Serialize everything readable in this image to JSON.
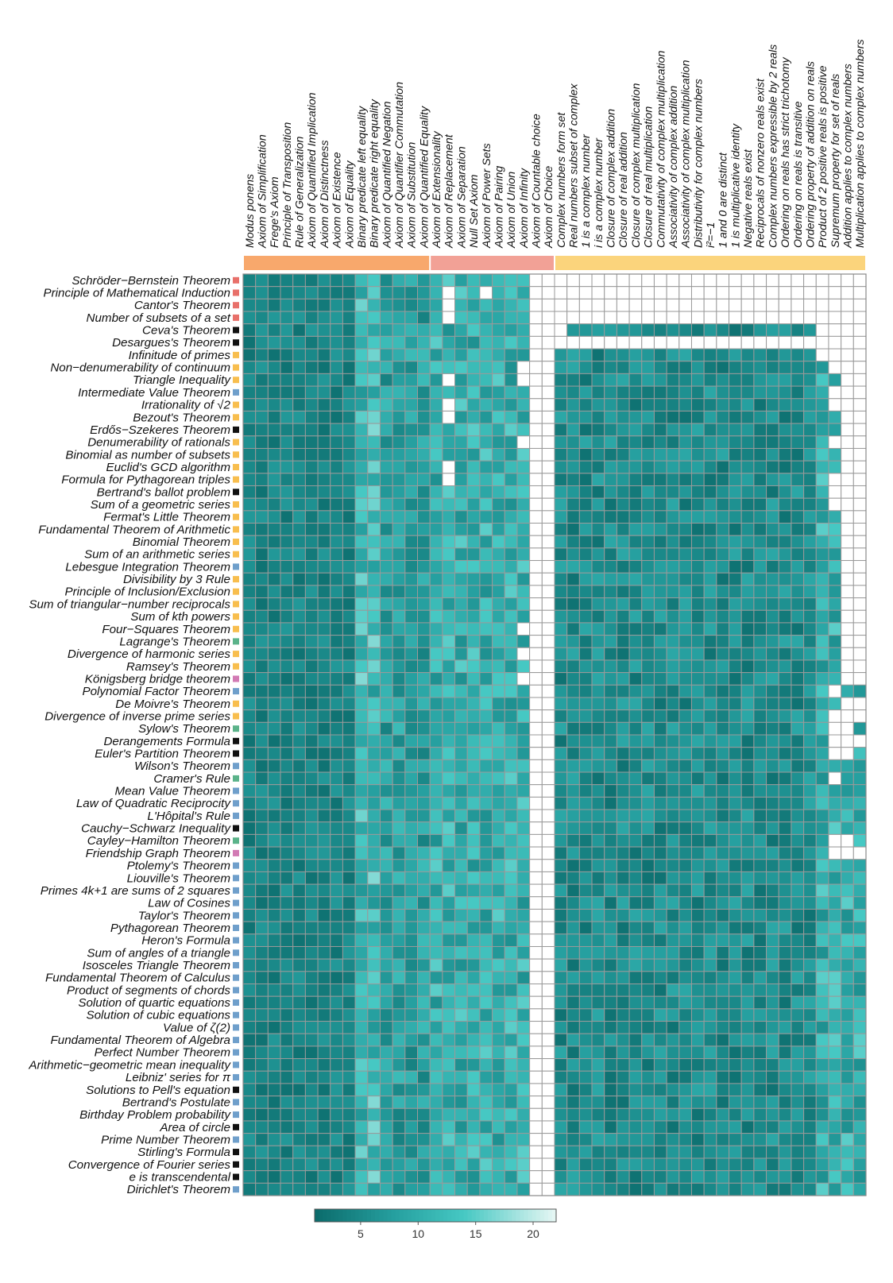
{
  "chart_data": {
    "type": "heatmap",
    "title": "",
    "xlabel": "",
    "ylabel": "",
    "columns": [
      "Modus ponens",
      "Axiom of Simplification",
      "Frege's Axiom",
      "Principle of Transposition",
      "Rule of Generalization",
      "Axiom of Quantified Implication",
      "Axiom of Distinctness",
      "Axiom of Existence",
      "Axiom of Equality",
      "Binary predicate left equality",
      "Binary predicate right equality",
      "Axiom of Quantified Negation",
      "Axiom of Quantifier Commutation",
      "Axiom of Substitution",
      "Axiom of Quantified Equality",
      "Axiom of Extensionality",
      "Axiom of Replacement",
      "Axiom of Separation",
      "Null Set Axiom",
      "Axiom of Power Sets",
      "Axiom of Pairing",
      "Axiom of Union",
      "Axiom of Infinity",
      "Axiom of Countable choice",
      "Axiom of Choice",
      "Complex numbers form set",
      "Real numbers subset of complex",
      "1 is a complex number",
      "i is a complex number",
      "Closure of complex addition",
      "Closure of real addition",
      "Closure of complex multiplication",
      "Closure of real multiplication",
      "Commutativity of complex multiplication",
      "Associativity of complex addition",
      "Associativity of complex multiplication",
      "Distributivity for complex numbers",
      "i²=−1",
      "1 and 0 are distinct",
      "1 is multiplicative identity",
      "Negative reals exist",
      "Reciprocals of nonzero reals exist",
      "Complex numbers expressible by 2 reals",
      "Ordering on reals has strict trichotomy",
      "Ordering on reals is transitive",
      "Ordering property of addition on reals",
      "Product of 2 positive reals is positive",
      "Supremum property for set of reals",
      "Addition applies to complex numbers",
      "Multiplication applies to complex numbers"
    ],
    "column_groups": [
      {
        "name": "",
        "start": 0,
        "end": 14,
        "color": "#F8A86C"
      },
      {
        "name": "",
        "start": 15,
        "end": 24,
        "color": "#F2A196"
      },
      {
        "name": "",
        "start": 25,
        "end": 49,
        "color": "#FBD47C"
      }
    ],
    "rows": [
      "Schröder−Bernstein Theorem",
      "Principle of Mathematical Induction",
      "Cantor's Theorem",
      "Number of subsets of a set",
      "Ceva's Theorem",
      "Desargues's Theorem",
      "Infinitude of primes",
      "Non−denumerability of continuum",
      "Triangle Inequality",
      "Intermediate Value Theorem",
      "Irrationality of √2",
      "Bezout's Theorem",
      "Erdős−Szekeres Theorem",
      "Denumerability of rationals",
      "Binomial as number of subsets",
      "Euclid's GCD algorithm",
      "Formula for Pythagorean triples",
      "Bertrand's ballot problem",
      "Sum of a geometric series",
      "Fermat's Little Theorem",
      "Fundamental Theorem of Arithmetic",
      "Binomial Theorem",
      "Sum of an arithmetic series",
      "Lebesgue Integration Theorem",
      "Divisibility by 3 Rule",
      "Principle of Inclusion/Exclusion",
      "Sum of triangular−number reciprocals",
      "Sum of kth powers",
      "Four−Squares Theorem",
      "Lagrange's Theorem",
      "Divergence of harmonic series",
      "Ramsey's Theorem",
      "Königsberg bridge theorem",
      "Polynomial Factor Theorem",
      "De Moivre's Theorem",
      "Divergence of inverse prime series",
      "Sylow's Theorem",
      "Derangements Formula",
      "Euler's Partition Theorem",
      "Wilson's Theorem",
      "Cramer's Rule",
      "Mean Value Theorem",
      "Law of Quadratic Reciprocity",
      "L'Hôpital's Rule",
      "Cauchy−Schwarz Inequality",
      "Cayley−Hamilton Theorem",
      "Friendship Graph Theorem",
      "Ptolemy's Theorem",
      "Liouville's Theorem",
      "Primes 4k+1 are sums of 2 squares",
      "Law of Cosines",
      "Taylor's Theorem",
      "Pythagorean Theorem",
      "Heron's Formula",
      "Sum of angles of a triangle",
      "Isosceles Triangle Theorem",
      "Fundamental Theorem of Calculus",
      "Product of segments of chords",
      "Solution of quartic equations",
      "Solution of cubic equations",
      "Value of ζ(2)",
      "Fundamental Theorem of Algebra",
      "Perfect Number Theorem",
      "Arithmetic−geometric mean inequality",
      "Leibniz' series for π",
      "Solutions to Pell's equation",
      "Bertrand's Postulate",
      "Birthday Problem probability",
      "Area of circle",
      "Prime Number Theorem",
      "Stirling's Formula",
      "Convergence of Fourier series",
      "e is transcendental",
      "Dirichlet's Theorem"
    ],
    "row_categories": [
      "red",
      "red",
      "red",
      "red",
      "black",
      "black",
      "orange",
      "orange",
      "orange",
      "blue",
      "orange",
      "orange",
      "black",
      "orange",
      "orange",
      "orange",
      "orange",
      "black",
      "orange",
      "orange",
      "orange",
      "orange",
      "orange",
      "blue",
      "orange",
      "orange",
      "orange",
      "orange",
      "orange",
      "green",
      "orange",
      "orange",
      "pink",
      "blue",
      "orange",
      "orange",
      "green",
      "black",
      "black",
      "blue",
      "green",
      "blue",
      "blue",
      "blue",
      "black",
      "green",
      "pink",
      "blue",
      "blue",
      "blue",
      "blue",
      "blue",
      "blue",
      "blue",
      "blue",
      "blue",
      "blue",
      "blue",
      "blue",
      "blue",
      "blue",
      "blue",
      "blue",
      "blue",
      "blue",
      "black",
      "blue",
      "blue",
      "black",
      "blue",
      "black",
      "black",
      "black",
      "blue"
    ],
    "category_colors": {
      "red": "#E8706A",
      "black": "#111111",
      "orange": "#F8BE4E",
      "blue": "#6F9FCB",
      "green": "#5BB38A",
      "pink": "#D27AB4"
    },
    "empty_cells_note": "",
    "values": "see script-generated matrix",
    "colorbar": {
      "min": 1,
      "max": 22,
      "ticks": [
        5,
        10,
        15,
        20
      ],
      "low_color": "#0B6B6B",
      "mid_color": "#3FB9B4",
      "high_color": "#E6F6F3"
    },
    "grid": true
  }
}
